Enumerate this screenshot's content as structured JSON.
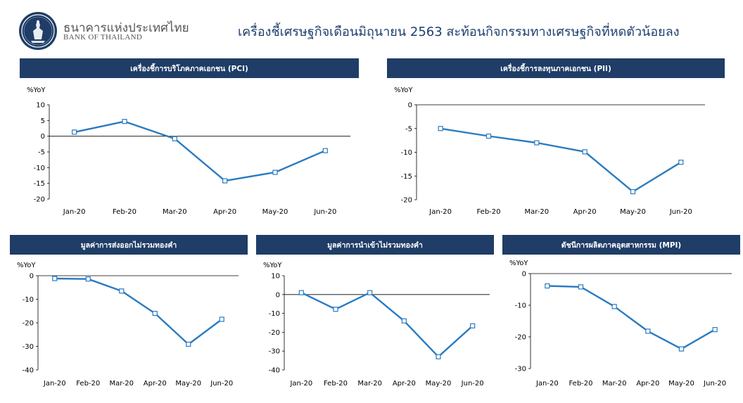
{
  "header": {
    "org_name_th": "ธนาคารแห่งประเทศไทย",
    "org_name_en": "BANK OF THAILAND",
    "headline": "เครื่องชี้เศรษฐกิจเดือนมิถุนายน 2563 สะท้อนกิจกรรมทางเศรษฐกิจที่หดตัวน้อยลง",
    "accent_color": "#1f3d66",
    "line_color": "#2a7bc0"
  },
  "chart_data": [
    {
      "type": "line",
      "title": "เครื่องชี้การบริโภคภาคเอกชน (PCI)",
      "ylabel": "%YoY",
      "categories": [
        "Jan-20",
        "Feb-20",
        "Mar-20",
        "Apr-20",
        "May-20",
        "Jun-20"
      ],
      "values": [
        1.3,
        4.7,
        -0.8,
        -14.2,
        -11.5,
        -4.6
      ],
      "ylim": [
        -20,
        10
      ],
      "yticks": [
        10,
        5,
        0,
        -5,
        -10,
        -15,
        -20
      ]
    },
    {
      "type": "line",
      "title": "เครื่องชี้การลงทุนภาคเอกชน (PII)",
      "ylabel": "%YoY",
      "categories": [
        "Jan-20",
        "Feb-20",
        "Mar-20",
        "Apr-20",
        "May-20",
        "Jun-20"
      ],
      "values": [
        -5.0,
        -6.6,
        -8.0,
        -9.9,
        -18.3,
        -12.1
      ],
      "ylim": [
        -20,
        0
      ],
      "yticks": [
        0,
        -5,
        -10,
        -15,
        -20
      ]
    },
    {
      "type": "line",
      "title": "มูลค่าการส่งออกไม่รวมทองคำ",
      "ylabel": "%YoY",
      "categories": [
        "Jan-20",
        "Feb-20",
        "Mar-20",
        "Apr-20",
        "May-20",
        "Jun-20"
      ],
      "values": [
        -1.2,
        -1.4,
        -6.5,
        -16.0,
        -29.1,
        -18.5
      ],
      "ylim": [
        -40,
        0
      ],
      "yticks": [
        0,
        -10,
        -20,
        -30,
        -40
      ]
    },
    {
      "type": "line",
      "title": "มูลค่าการนำเข้าไม่รวมทองคำ",
      "ylabel": "%YoY",
      "categories": [
        "Jan-20",
        "Feb-20",
        "Mar-20",
        "Apr-20",
        "May-20",
        "Jun-20"
      ],
      "values": [
        1.0,
        -7.8,
        1.0,
        -14.0,
        -33.0,
        -16.6
      ],
      "ylim": [
        -40,
        10
      ],
      "yticks": [
        10,
        0,
        -10,
        -20,
        -30,
        -40
      ]
    },
    {
      "type": "line",
      "title": "ดัชนีการผลิตภาคอุตสาหกรรม (MPI)",
      "ylabel": "%YoY",
      "categories": [
        "Jan-20",
        "Feb-20",
        "Mar-20",
        "Apr-20",
        "May-20",
        "Jun-20"
      ],
      "values": [
        -3.9,
        -4.2,
        -10.4,
        -18.2,
        -23.8,
        -17.7
      ],
      "ylim": [
        -30,
        0
      ],
      "yticks": [
        0,
        -10,
        -20,
        -30
      ]
    }
  ]
}
